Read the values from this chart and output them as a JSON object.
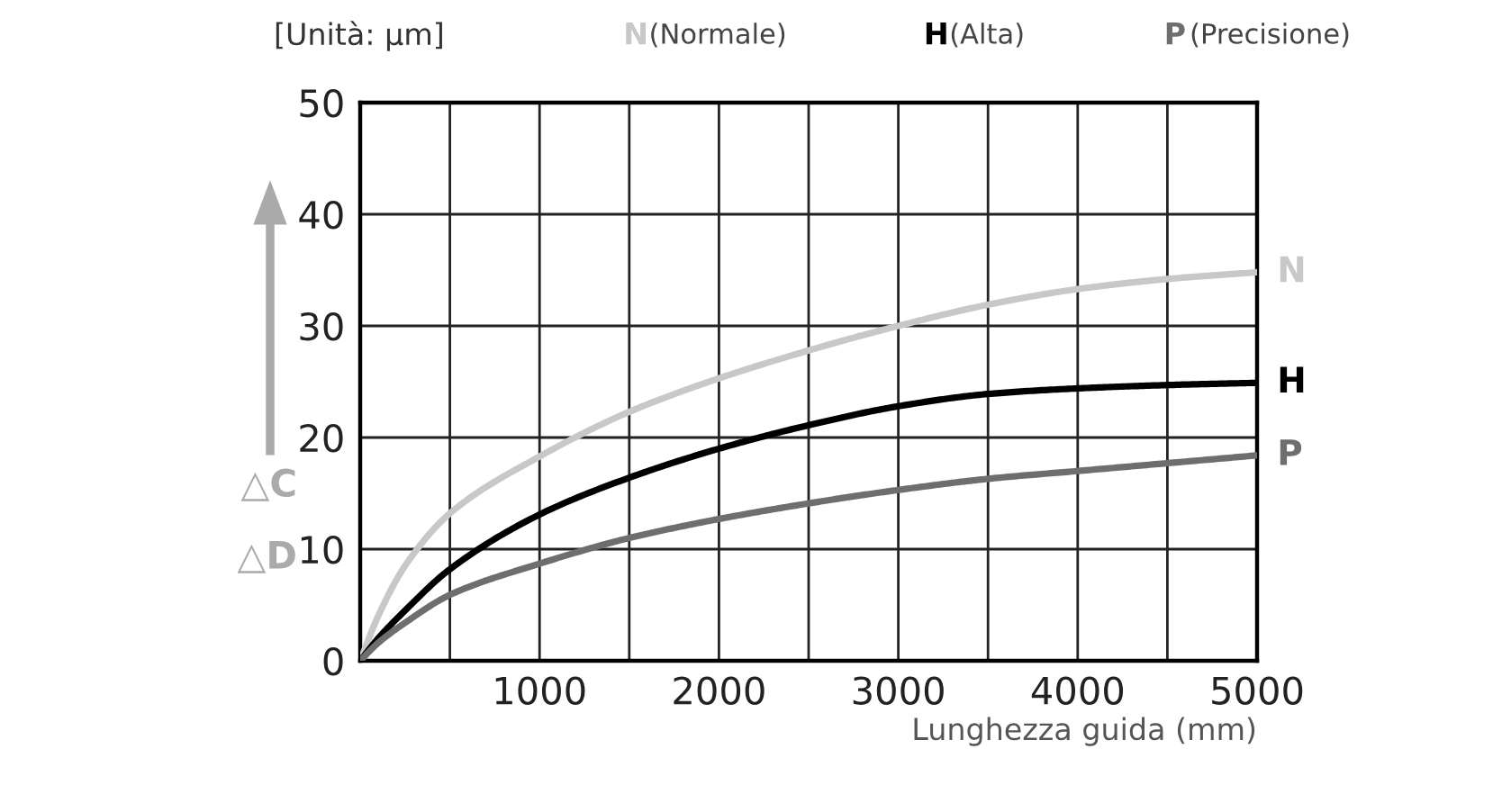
{
  "chart_data": {
    "type": "line",
    "ylabel": "[Unità: μm]",
    "xlabel": "Lunghezza guida (mm)",
    "x": [
      0,
      100,
      250,
      500,
      1000,
      1500,
      2000,
      2500,
      3000,
      3500,
      4000,
      4500,
      5000
    ],
    "series": [
      {
        "name": "N (Normale)",
        "color": "#c8c8c8",
        "values": [
          0,
          4,
          8.5,
          13.2,
          18.3,
          22.3,
          25.3,
          27.8,
          30,
          31.9,
          33.3,
          34.2,
          34.8
        ]
      },
      {
        "name": "H (Alta)",
        "color": "#000000",
        "values": [
          0,
          2,
          4.5,
          8.2,
          13.1,
          16.4,
          19,
          21.1,
          22.8,
          23.9,
          24.4,
          24.7,
          24.9
        ]
      },
      {
        "name": "P (Precisione)",
        "color": "#6e6e6e",
        "values": [
          0,
          1.6,
          3.4,
          5.9,
          8.7,
          11,
          12.7,
          14.1,
          15.3,
          16.3,
          17,
          17.7,
          18.4
        ]
      }
    ],
    "annotations": [
      "N",
      "H",
      "P",
      "△C",
      "△D"
    ],
    "xlim": [
      0,
      5000
    ],
    "ylim": [
      0,
      50
    ],
    "xticks": [
      {
        "value": 0,
        "label": null
      },
      {
        "value": 500,
        "label": null
      },
      1000,
      {
        "value": 1500,
        "label": null
      },
      2000,
      {
        "value": 2500,
        "label": null
      },
      3000,
      {
        "value": 3500,
        "label": null
      },
      4000,
      {
        "value": 4500,
        "label": null
      },
      5000
    ],
    "yticks": [
      0,
      10,
      20,
      30,
      40,
      50
    ],
    "grid": true,
    "legend": "top",
    "marker": "none",
    "line_style": "solid"
  }
}
